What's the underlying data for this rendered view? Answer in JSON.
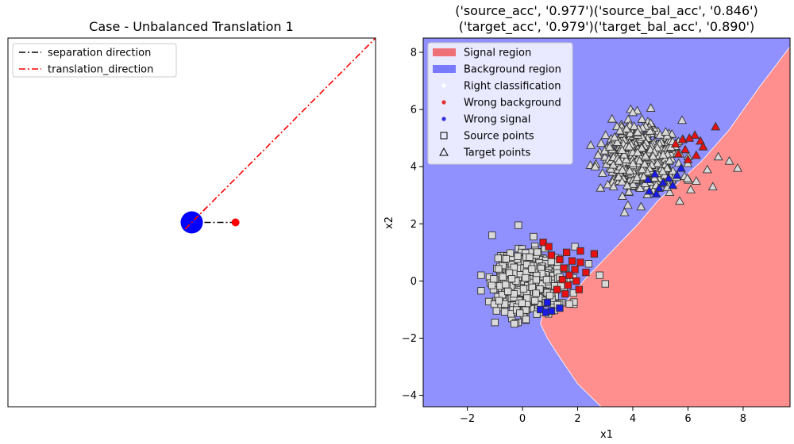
{
  "chart_data": [
    {
      "type": "line",
      "title": "Case - Unbalanced Translation 1",
      "legend_position": "top-left",
      "axes_visible": false,
      "xlim": [
        -4.2,
        4.2
      ],
      "ylim": [
        -4.2,
        4.2
      ],
      "series": [
        {
          "name": "separation direction",
          "color": "#000000",
          "style": "dash-dot",
          "x": [
            0,
            1
          ],
          "y": [
            0,
            0
          ]
        },
        {
          "name": "translation_direction",
          "color": "#ff0000",
          "style": "dash-dot",
          "x": [
            -0.15,
            4.2
          ],
          "y": [
            -0.15,
            4.2
          ]
        }
      ],
      "points": [
        {
          "name": "source center",
          "x": 0,
          "y": 0,
          "color": "#0000ff",
          "size": "large"
        },
        {
          "name": "separation end",
          "x": 1,
          "y": 0,
          "color": "#ff0000",
          "size": "small"
        }
      ]
    },
    {
      "type": "scatter",
      "title_lines": [
        "('source_acc', '0.977')('source_bal_acc', '0.846')",
        "('target_acc', '0.979')('target_bal_acc', '0.890')"
      ],
      "xlabel": "x1",
      "ylabel": "x2",
      "xlim": [
        -3.6,
        9.7
      ],
      "ylim": [
        -4.4,
        8.5
      ],
      "xticks": [
        -2,
        0,
        2,
        4,
        6,
        8
      ],
      "yticks": [
        -4,
        -2,
        0,
        2,
        4,
        6,
        8
      ],
      "legend_position": "top-left",
      "legend": [
        {
          "label": "Signal region",
          "kind": "patch",
          "color": "#f07078"
        },
        {
          "label": "Background region",
          "kind": "patch",
          "color": "#7a7aff"
        },
        {
          "label": "Right classification",
          "kind": "dot",
          "color": "#ffffff"
        },
        {
          "label": "Wrong background",
          "kind": "dot",
          "color": "#e03030"
        },
        {
          "label": "Wrong signal",
          "kind": "dot",
          "color": "#3030e0"
        },
        {
          "label": "Source points",
          "kind": "square",
          "color": "#000000"
        },
        {
          "label": "Target points",
          "kind": "triangle",
          "color": "#000000"
        }
      ],
      "regions": {
        "signal_color": "#ff8f8f",
        "background_color": "#9090ff",
        "boundary": [
          [
            2.85,
            -4.4
          ],
          [
            2.0,
            -3.6
          ],
          [
            1.3,
            -2.6
          ],
          [
            0.9,
            -2.0
          ],
          [
            0.65,
            -1.5
          ],
          [
            0.75,
            -1.1
          ],
          [
            1.6,
            -0.7
          ],
          [
            2.3,
            0.1
          ],
          [
            3.2,
            1.0
          ],
          [
            4.2,
            2.0
          ],
          [
            4.9,
            2.8
          ],
          [
            5.6,
            3.4
          ],
          [
            6.5,
            4.2
          ],
          [
            7.5,
            5.3
          ],
          [
            8.6,
            6.8
          ],
          [
            9.7,
            8.2
          ]
        ]
      },
      "clusters": [
        {
          "name": "Source points",
          "marker": "square",
          "center": [
            0.15,
            -0.05
          ],
          "spread": [
            0.55,
            0.5
          ],
          "count": 700,
          "seed": 7,
          "extra": [
            [
              -1.1,
              1.6
            ],
            [
              -0.15,
              1.95
            ],
            [
              0.4,
              1.55
            ],
            [
              -1.0,
              -1.45
            ],
            [
              -0.3,
              -1.5
            ],
            [
              1.7,
              -0.8
            ],
            [
              3.0,
              -0.1
            ],
            [
              2.8,
              0.2
            ],
            [
              2.4,
              0.6
            ],
            [
              -1.5,
              0.2
            ],
            [
              1.9,
              1.2
            ]
          ]
        },
        {
          "name": "Target points",
          "marker": "triangle",
          "center": [
            4.35,
            4.3
          ],
          "spread": [
            0.65,
            0.5
          ],
          "count": 700,
          "seed": 13,
          "extra": [
            [
              6.7,
              3.9
            ],
            [
              6.3,
              3.5
            ],
            [
              6.1,
              3.2
            ],
            [
              5.7,
              2.8
            ],
            [
              4.0,
              5.9
            ],
            [
              4.65,
              6.05
            ],
            [
              4.3,
              2.6
            ],
            [
              3.7,
              2.4
            ],
            [
              3.3,
              3.3
            ],
            [
              7.5,
              4.2
            ],
            [
              7.8,
              3.95
            ],
            [
              7.1,
              4.35
            ],
            [
              6.9,
              3.3
            ]
          ]
        }
      ],
      "misclassified": [
        {
          "marker": "square",
          "color": "#e81010",
          "points": [
            [
              0.75,
              1.35
            ],
            [
              1.6,
              1.0
            ],
            [
              2.1,
              1.05
            ],
            [
              2.6,
              0.95
            ],
            [
              1.35,
              0.75
            ],
            [
              1.8,
              0.7
            ],
            [
              2.1,
              0.65
            ],
            [
              1.5,
              0.45
            ],
            [
              1.9,
              0.4
            ],
            [
              1.7,
              0.2
            ],
            [
              2.3,
              0.3
            ],
            [
              1.45,
              0.05
            ],
            [
              1.95,
              0.0
            ],
            [
              1.65,
              -0.15
            ],
            [
              1.25,
              -0.3
            ],
            [
              2.05,
              -0.3
            ],
            [
              1.55,
              -0.45
            ],
            [
              1.05,
              0.9
            ],
            [
              0.95,
              1.2
            ]
          ]
        },
        {
          "marker": "square",
          "color": "#1a1ae8",
          "points": [
            [
              0.65,
              -1.0
            ],
            [
              0.85,
              -1.1
            ],
            [
              1.05,
              -1.05
            ],
            [
              1.35,
              -0.95
            ],
            [
              0.9,
              -0.75
            ]
          ]
        },
        {
          "marker": "triangle",
          "color": "#e81010",
          "points": [
            [
              6.25,
              5.1
            ],
            [
              6.05,
              5.0
            ],
            [
              5.8,
              4.95
            ],
            [
              6.45,
              4.9
            ],
            [
              6.55,
              4.7
            ],
            [
              5.9,
              4.6
            ],
            [
              5.65,
              4.45
            ],
            [
              6.3,
              4.4
            ],
            [
              6.0,
              4.25
            ],
            [
              7.0,
              5.4
            ],
            [
              5.55,
              4.8
            ]
          ]
        },
        {
          "marker": "triangle",
          "color": "#1a1ae8",
          "points": [
            [
              4.55,
              3.55
            ],
            [
              4.8,
              3.75
            ],
            [
              5.1,
              3.45
            ],
            [
              5.3,
              3.6
            ],
            [
              4.95,
              3.25
            ],
            [
              5.6,
              3.7
            ],
            [
              5.45,
              3.35
            ],
            [
              4.6,
              3.15
            ],
            [
              5.75,
              3.95
            ],
            [
              4.85,
              3.05
            ]
          ]
        }
      ]
    }
  ]
}
